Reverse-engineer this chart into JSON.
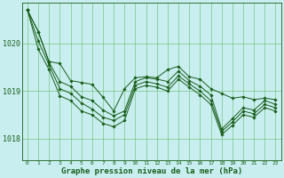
{
  "background_color": "#c8eef0",
  "plot_bg_color": "#c8eef0",
  "grid_color": "#66bb66",
  "line_color": "#1a5e1a",
  "marker_color": "#1a5e1a",
  "xlabel": "Graphe pression niveau de la mer (hPa)",
  "xlabel_color": "#1a5e1a",
  "xlim": [
    -0.5,
    23.5
  ],
  "ylim": [
    1017.55,
    1020.85
  ],
  "yticks": [
    1018,
    1019,
    1020
  ],
  "xticks": [
    0,
    1,
    2,
    3,
    4,
    5,
    6,
    7,
    8,
    9,
    10,
    11,
    12,
    13,
    14,
    15,
    16,
    17,
    18,
    19,
    20,
    21,
    22,
    23
  ],
  "series": [
    [
      1020.7,
      1020.25,
      1019.62,
      1019.58,
      1019.22,
      1019.18,
      1019.14,
      1018.87,
      1018.58,
      1019.05,
      1019.28,
      1019.3,
      1019.28,
      1019.45,
      1019.52,
      1019.3,
      1019.25,
      1019.05,
      1018.95,
      1018.85,
      1018.88,
      1018.82,
      1018.85,
      1018.82
    ],
    [
      1020.7,
      1020.25,
      1019.6,
      1019.2,
      1019.1,
      1018.88,
      1018.8,
      1018.6,
      1018.48,
      1018.58,
      1019.2,
      1019.28,
      1019.25,
      1019.2,
      1019.42,
      1019.22,
      1019.1,
      1018.92,
      1018.2,
      1018.42,
      1018.65,
      1018.6,
      1018.8,
      1018.72
    ],
    [
      1020.7,
      1020.05,
      1019.55,
      1019.05,
      1018.95,
      1018.75,
      1018.62,
      1018.45,
      1018.38,
      1018.5,
      1019.12,
      1019.2,
      1019.15,
      1019.08,
      1019.32,
      1019.15,
      1019.0,
      1018.8,
      1018.15,
      1018.35,
      1018.58,
      1018.52,
      1018.72,
      1018.65
    ],
    [
      1020.7,
      1019.88,
      1019.45,
      1018.9,
      1018.8,
      1018.58,
      1018.5,
      1018.32,
      1018.25,
      1018.38,
      1019.05,
      1019.12,
      1019.08,
      1019.0,
      1019.25,
      1019.08,
      1018.92,
      1018.72,
      1018.08,
      1018.28,
      1018.5,
      1018.45,
      1018.65,
      1018.58
    ]
  ]
}
